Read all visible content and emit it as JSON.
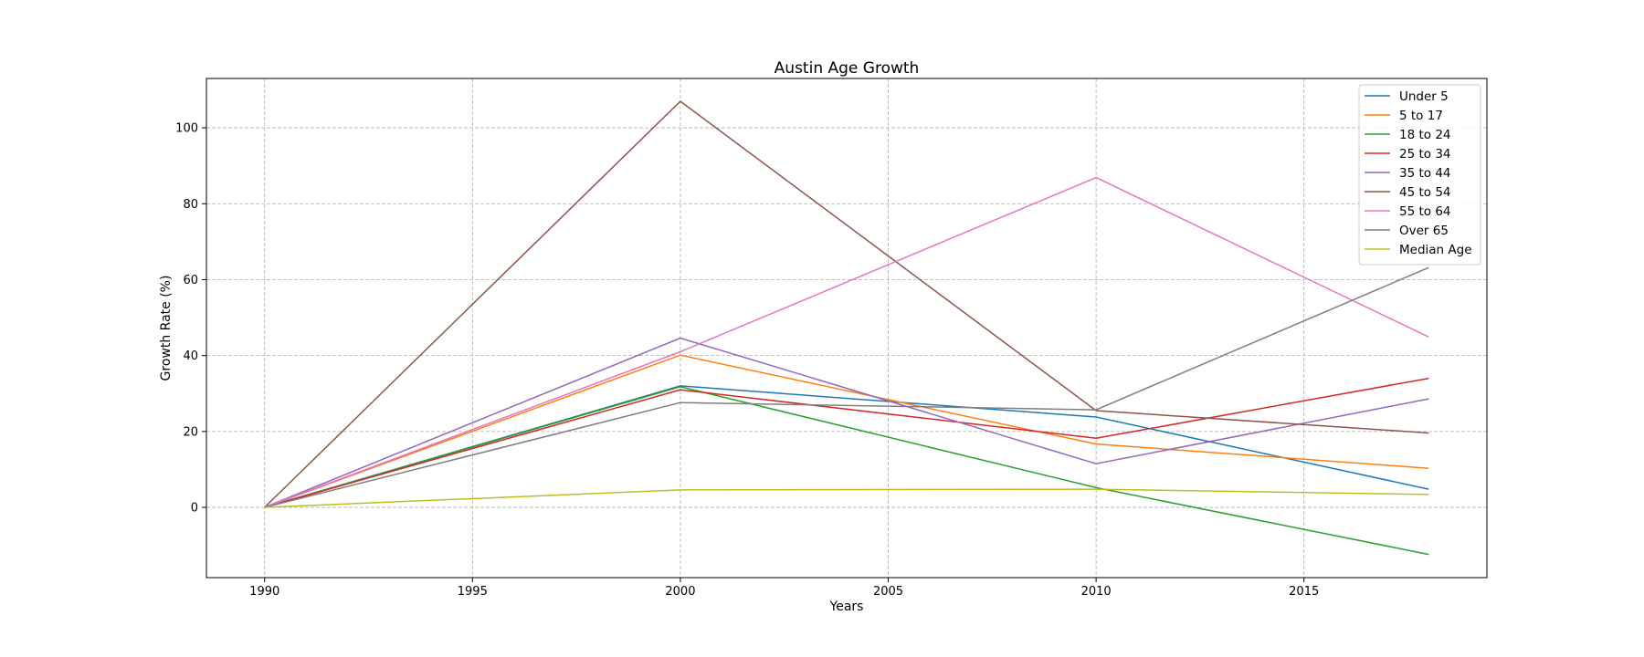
{
  "chart_data": {
    "type": "line",
    "title": "Austin Age Growth",
    "xlabel": "Years",
    "ylabel": "Growth Rate (%)",
    "x": [
      1990,
      2000,
      2010,
      2018
    ],
    "xlim": [
      1988.6,
      2019.4
    ],
    "ylim": [
      -18.5,
      113
    ],
    "xticks": [
      1990,
      1995,
      2000,
      2005,
      2010,
      2015
    ],
    "yticks": [
      0,
      20,
      40,
      60,
      80,
      100
    ],
    "grid": true,
    "grid_style": "dashed",
    "legend_position": "top-right",
    "series": [
      {
        "name": "Under 5",
        "color": "#1f77b4",
        "values": [
          0,
          32.0,
          23.8,
          4.8
        ]
      },
      {
        "name": "5 to 17",
        "color": "#ff7f0e",
        "values": [
          0,
          40.1,
          16.7,
          10.3
        ]
      },
      {
        "name": "18 to 24",
        "color": "#2ca02c",
        "values": [
          0,
          31.8,
          5.2,
          -12.4
        ]
      },
      {
        "name": "25 to 34",
        "color": "#d62728",
        "values": [
          0,
          31.0,
          18.2,
          34.0
        ]
      },
      {
        "name": "35 to 44",
        "color": "#9467bd",
        "values": [
          0,
          44.6,
          11.5,
          28.6
        ]
      },
      {
        "name": "45 to 54",
        "color": "#8c564b",
        "values": [
          0,
          107.0,
          25.5,
          19.6
        ]
      },
      {
        "name": "55 to 64",
        "color": "#e377c2",
        "values": [
          0,
          41.0,
          86.9,
          44.9
        ]
      },
      {
        "name": "Over 65",
        "color": "#7f7f7f",
        "values": [
          0,
          27.6,
          25.7,
          63.2
        ]
      },
      {
        "name": "Median Age",
        "color": "#bcbd22",
        "values": [
          0,
          4.6,
          4.8,
          3.4
        ]
      }
    ]
  }
}
